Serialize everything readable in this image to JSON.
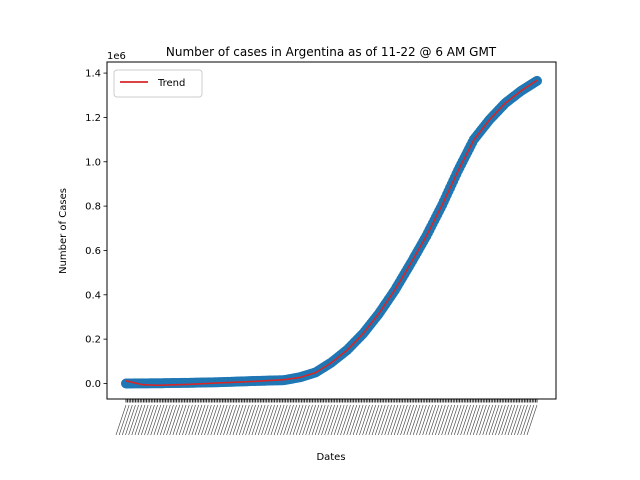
{
  "chart_data": {
    "type": "scatter",
    "title": "Number of cases in Argentina as of 11-22 @ 6 AM GMT",
    "xlabel": "Dates",
    "ylabel": "Number of Cases",
    "y_offset_label": "1e6",
    "ylim": [
      -0.07,
      1.45
    ],
    "yticks": [
      0.0,
      0.2,
      0.4,
      0.6,
      0.8,
      1.0,
      1.2,
      1.4
    ],
    "ytick_labels": [
      "0.0",
      "0.2",
      "0.4",
      "0.6",
      "0.8",
      "1.0",
      "1.2",
      "1.4"
    ],
    "x_count": 261,
    "xtick_rotation_deg": -45,
    "legend": {
      "placement": "upper-left",
      "entries": [
        "Trend"
      ]
    },
    "grid": false,
    "series": [
      {
        "name": "",
        "kind": "scatter",
        "color": "#1f77b4",
        "x_index": [
          0,
          20,
          40,
          60,
          80,
          100,
          110,
          120,
          130,
          140,
          150,
          160,
          170,
          180,
          190,
          200,
          210,
          220,
          230,
          240,
          250,
          260
        ],
        "values": [
          0.0,
          0.001,
          0.003,
          0.006,
          0.011,
          0.015,
          0.028,
          0.05,
          0.095,
          0.152,
          0.225,
          0.315,
          0.42,
          0.54,
          0.665,
          0.805,
          0.96,
          1.1,
          1.19,
          1.265,
          1.32,
          1.365
        ]
      },
      {
        "name": "Trend",
        "kind": "line",
        "color": "#d62728",
        "x_index": [
          0,
          10,
          20,
          30,
          40,
          60,
          80,
          100,
          110,
          120,
          130,
          140,
          150,
          160,
          170,
          180,
          190,
          200,
          210,
          220,
          230,
          240,
          250,
          260
        ],
        "values": [
          0.012,
          -0.005,
          -0.008,
          -0.006,
          -0.004,
          0.003,
          0.009,
          0.017,
          0.027,
          0.049,
          0.094,
          0.151,
          0.225,
          0.316,
          0.421,
          0.54,
          0.665,
          0.805,
          0.958,
          1.098,
          1.19,
          1.265,
          1.32,
          1.368
        ]
      }
    ]
  },
  "colors": {
    "scatter": "#1f77b4",
    "trend": "#d62728",
    "axes": "#000000",
    "background": "#ffffff"
  }
}
